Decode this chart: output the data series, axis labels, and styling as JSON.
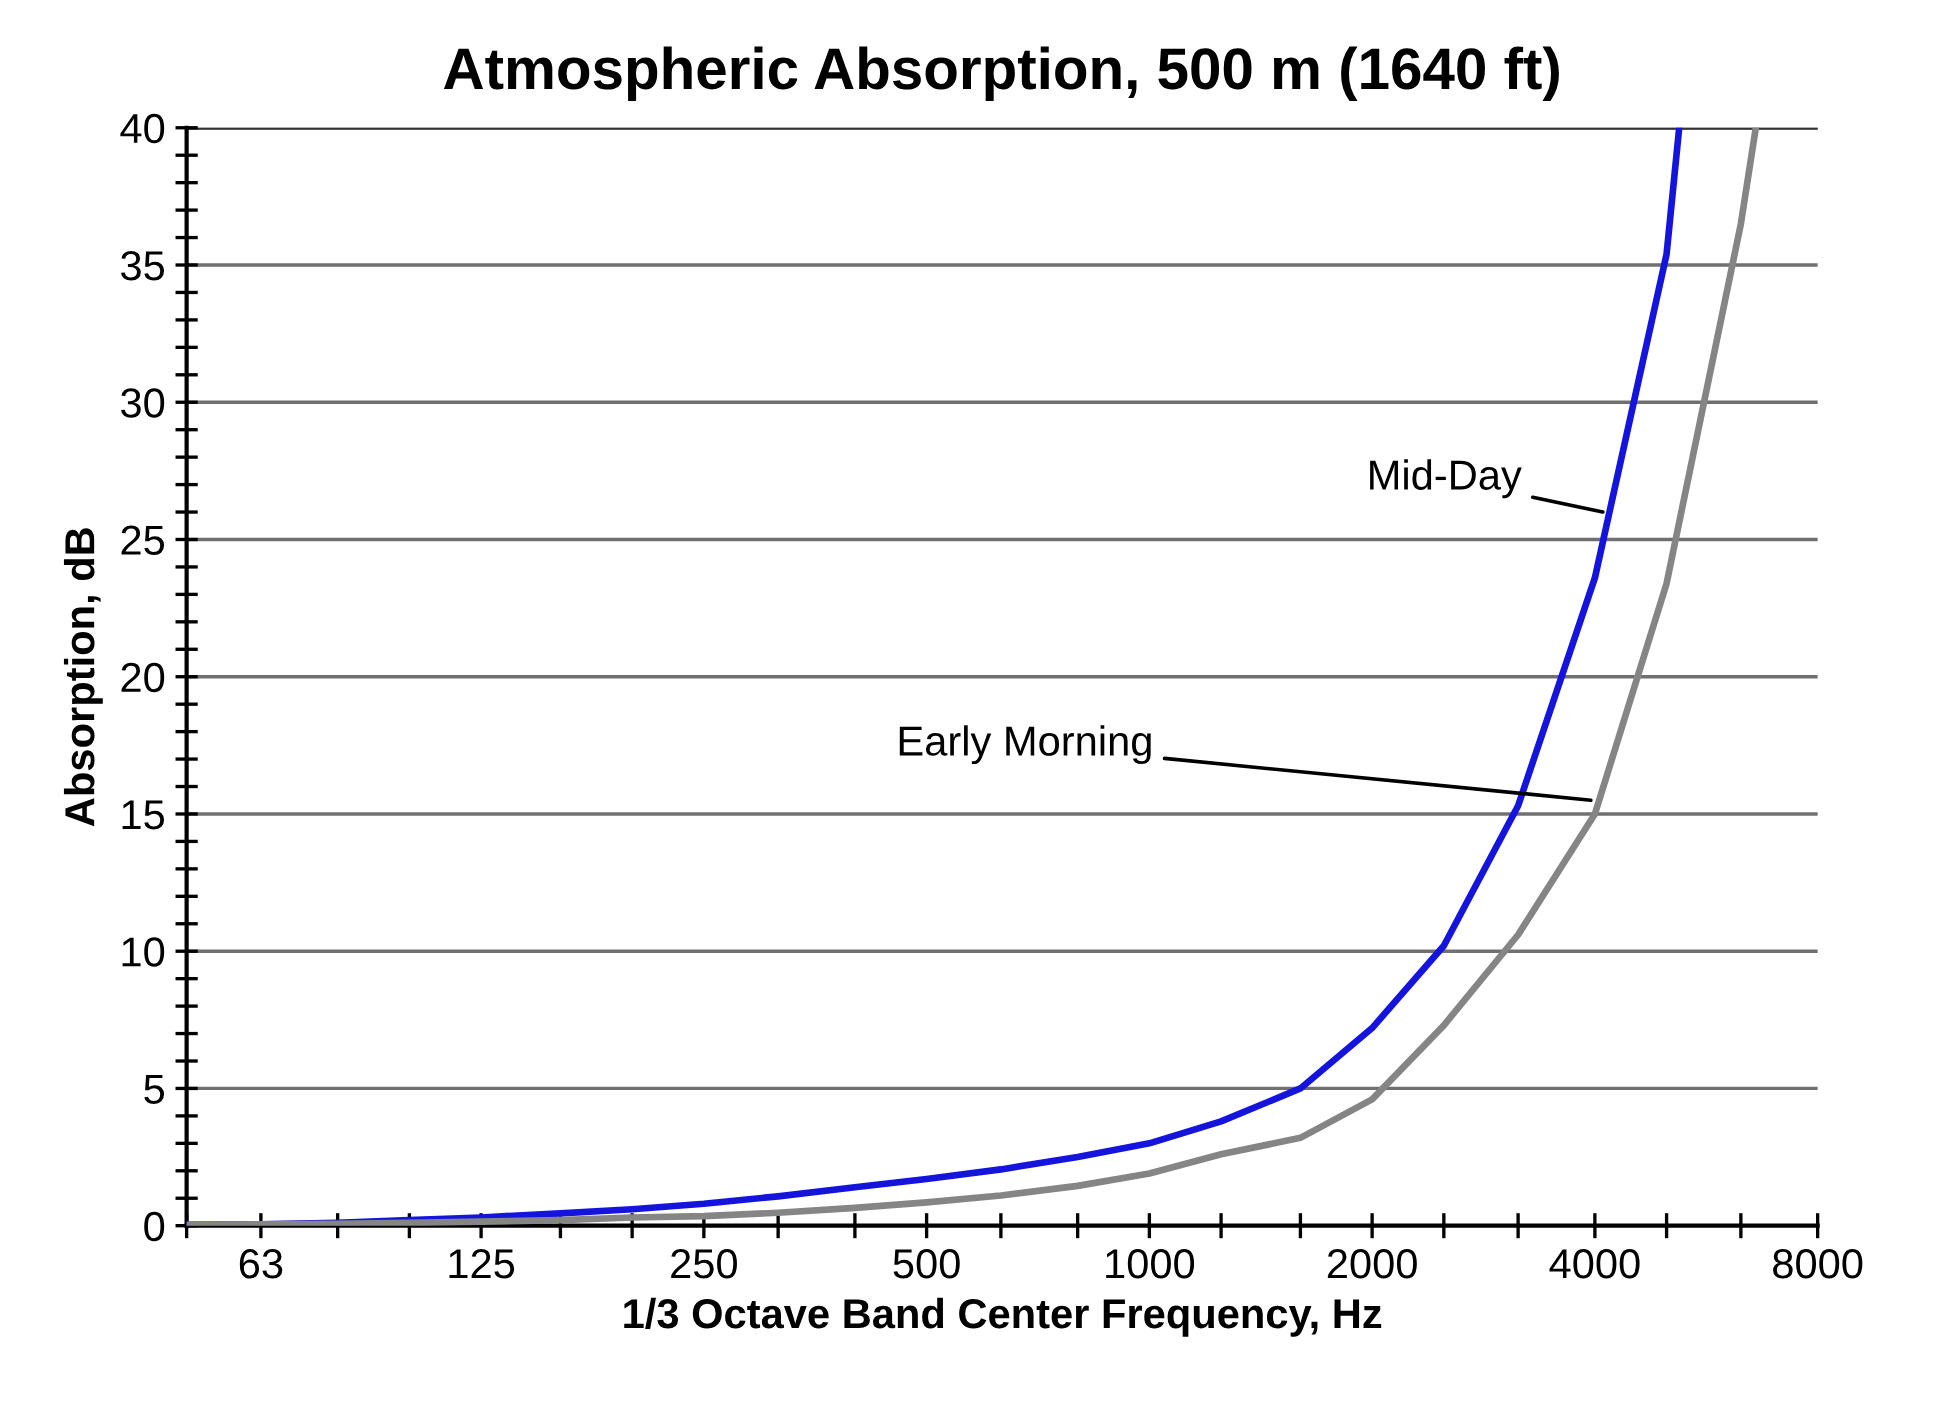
{
  "chart_data": {
    "type": "line",
    "title": "Atmospheric Absorption, 500 m (1640 ft)",
    "xlabel": "1/3 Octave Band Center Frequency, Hz",
    "ylabel": "Absorption, dB",
    "log": "x",
    "xlim": [
      50,
      8000
    ],
    "xticks": [
      {
        "value": 50,
        "label": null
      },
      63,
      {
        "value": 80,
        "label": null
      },
      {
        "value": 100,
        "label": null
      },
      125,
      {
        "value": 160,
        "label": null
      },
      {
        "value": 200,
        "label": null
      },
      250,
      {
        "value": 315,
        "label": null
      },
      {
        "value": 400,
        "label": null
      },
      500,
      {
        "value": 630,
        "label": null
      },
      {
        "value": 800,
        "label": null
      },
      1000,
      {
        "value": 1250,
        "label": null
      },
      {
        "value": 1600,
        "label": null
      },
      2000,
      {
        "value": 2500,
        "label": null
      },
      {
        "value": 3150,
        "label": null
      },
      4000,
      {
        "value": 5000,
        "label": null
      },
      {
        "value": 6300,
        "label": null
      },
      8000
    ],
    "ylim": [
      0,
      40
    ],
    "yticks": [
      0,
      {
        "value": 1,
        "label": null
      },
      {
        "value": 2,
        "label": null
      },
      {
        "value": 3,
        "label": null
      },
      {
        "value": 4,
        "label": null
      },
      5,
      {
        "value": 6,
        "label": null
      },
      {
        "value": 7,
        "label": null
      },
      {
        "value": 8,
        "label": null
      },
      {
        "value": 9,
        "label": null
      },
      10,
      {
        "value": 11,
        "label": null
      },
      {
        "value": 12,
        "label": null
      },
      {
        "value": 13,
        "label": null
      },
      {
        "value": 14,
        "label": null
      },
      15,
      {
        "value": 16,
        "label": null
      },
      {
        "value": 17,
        "label": null
      },
      {
        "value": 18,
        "label": null
      },
      {
        "value": 19,
        "label": null
      },
      20,
      {
        "value": 21,
        "label": null
      },
      {
        "value": 22,
        "label": null
      },
      {
        "value": 23,
        "label": null
      },
      {
        "value": 24,
        "label": null
      },
      25,
      {
        "value": 26,
        "label": null
      },
      {
        "value": 27,
        "label": null
      },
      {
        "value": 28,
        "label": null
      },
      {
        "value": 29,
        "label": null
      },
      30,
      {
        "value": 31,
        "label": null
      },
      {
        "value": 32,
        "label": null
      },
      {
        "value": 33,
        "label": null
      },
      {
        "value": 34,
        "label": null
      },
      35,
      {
        "value": 36,
        "label": null
      },
      {
        "value": 37,
        "label": null
      },
      {
        "value": 38,
        "label": null
      },
      {
        "value": 39,
        "label": null
      },
      40
    ],
    "grid": "y",
    "series": [
      {
        "color": "#1414dc",
        "x": [
          50,
          63,
          80,
          100,
          125,
          160,
          200,
          250,
          315,
          400,
          500,
          630,
          800,
          1000,
          1250,
          1600,
          2000,
          2500,
          3150,
          4000,
          5000,
          5200
        ],
        "values": [
          0.03,
          0.05,
          0.1,
          0.2,
          0.3,
          0.45,
          0.6,
          0.8,
          1.07,
          1.4,
          1.7,
          2.05,
          2.5,
          3.0,
          3.8,
          5.0,
          7.2,
          10.2,
          15.3,
          23.6,
          35.4,
          40
        ]
      },
      {
        "color": "#858585",
        "x": [
          50,
          63,
          80,
          100,
          125,
          160,
          200,
          250,
          315,
          400,
          500,
          630,
          800,
          1000,
          1250,
          1600,
          2000,
          2500,
          3150,
          4000,
          5000,
          6300,
          6600
        ],
        "values": [
          0.03,
          0.05,
          0.07,
          0.1,
          0.15,
          0.2,
          0.3,
          0.35,
          0.47,
          0.65,
          0.85,
          1.1,
          1.45,
          1.9,
          2.6,
          3.2,
          4.6,
          7.3,
          10.6,
          15.0,
          23.4,
          36.5,
          40
        ]
      }
    ],
    "annotations": [
      {
        "text": "Mid-Day",
        "x": 4100,
        "y": 26.0
      },
      {
        "text": "Early Morning",
        "x": 3950,
        "y": 15.5
      }
    ]
  }
}
